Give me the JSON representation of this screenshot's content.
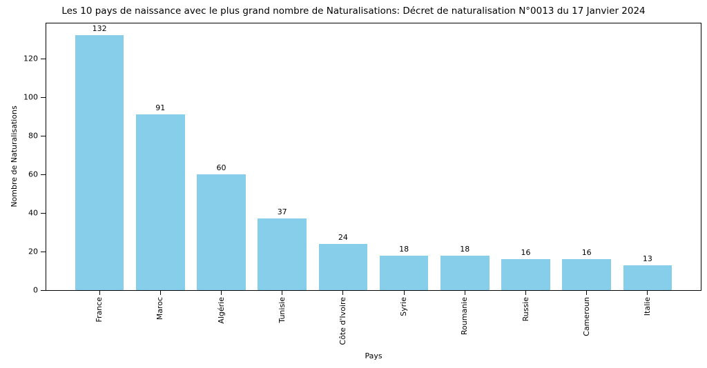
{
  "figure": {
    "background": "#ffffff",
    "text_color": "#000000",
    "spine_color": "#000000"
  },
  "chart_data": {
    "type": "bar",
    "title": "Les 10 pays de naissance avec le plus grand nombre de Naturalisations: Décret de naturalisation N°0013 du 17 Janvier 2024",
    "xlabel": "Pays",
    "ylabel": "Nombre de Naturalisations",
    "categories": [
      "France",
      "Maroc",
      "Algérie",
      "Tunisie",
      "Côte d'Ivoire",
      "Syrie",
      "Roumanie",
      "Russie",
      "Cameroun",
      "Italie"
    ],
    "values": [
      132,
      91,
      60,
      37,
      24,
      18,
      18,
      16,
      16,
      13
    ],
    "value_labels": [
      "132",
      "91",
      "60",
      "37",
      "24",
      "18",
      "18",
      "16",
      "16",
      "13"
    ],
    "bar_color": "#87CEEB",
    "yticks": [
      0,
      20,
      40,
      60,
      80,
      100,
      120
    ],
    "ylim": [
      0,
      138.6
    ],
    "grid": false,
    "legend": "none"
  }
}
